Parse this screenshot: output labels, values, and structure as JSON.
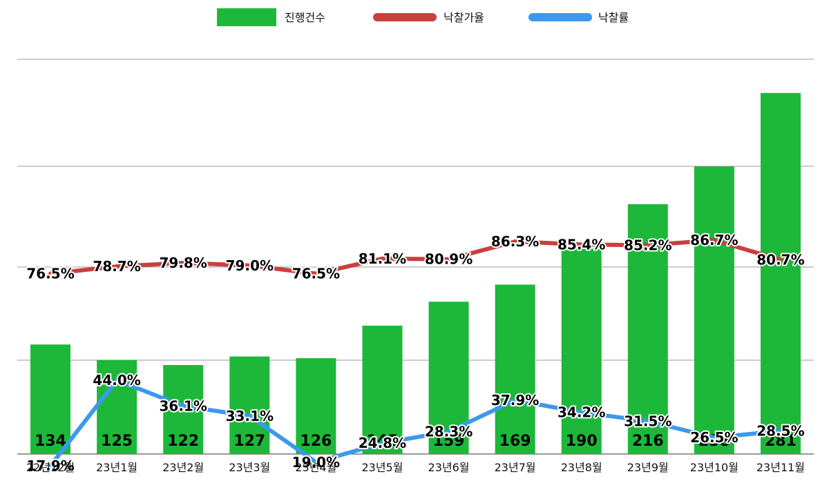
{
  "chart_data": {
    "type": "bar",
    "categories": [
      "22년12월",
      "23년1월",
      "23년2월",
      "23년3월",
      "23년4월",
      "23년5월",
      "23년6월",
      "23년7월",
      "23년8월",
      "23년9월",
      "23년10월",
      "23년11월"
    ],
    "series": [
      {
        "name": "진행건수",
        "type": "bar",
        "color": "#1db83a",
        "values": [
          134,
          125,
          122,
          127,
          126,
          145,
          159,
          169,
          190,
          216,
          238,
          281
        ],
        "labels": [
          "134",
          "125",
          "122",
          "127",
          "126",
          "145",
          "159",
          "169",
          "190",
          "216",
          "238",
          "281"
        ]
      },
      {
        "name": "낙찰가율",
        "type": "line",
        "color": "#c8403f",
        "values": [
          76.5,
          78.7,
          79.8,
          79.0,
          76.5,
          81.1,
          80.9,
          86.3,
          85.4,
          85.2,
          86.7,
          80.7
        ],
        "labels": [
          "76.5%",
          "78.7%",
          "79.8%",
          "79.0%",
          "76.5%",
          "81.1%",
          "80.9%",
          "86.3%",
          "85.4%",
          "85.2%",
          "86.7%",
          "80.7%"
        ]
      },
      {
        "name": "낙찰률",
        "type": "line",
        "color": "#3c99eb",
        "values": [
          17.9,
          44.0,
          36.1,
          33.1,
          19.0,
          24.8,
          28.3,
          37.9,
          34.2,
          31.5,
          26.5,
          28.5
        ],
        "labels": [
          "17.9%",
          "44.0%",
          "36.1%",
          "33.1%",
          "19.0%",
          "24.8%",
          "28.3%",
          "37.9%",
          "34.2%",
          "31.5%",
          "26.5%",
          "28.5%"
        ]
      }
    ],
    "grid": true,
    "legend": "top-center"
  }
}
